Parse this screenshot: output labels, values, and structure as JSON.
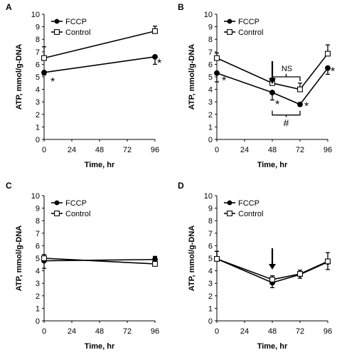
{
  "chart_data": [
    {
      "type": "line",
      "panel_label": "A",
      "xlabel": "Time, hr",
      "ylabel": "ATP, mmol/g-DNA",
      "xlim": [
        0,
        96
      ],
      "ylim": [
        0,
        10
      ],
      "xticks": [
        "0",
        "24",
        "48",
        "72",
        "96"
      ],
      "yticks": [
        "0",
        "1",
        "2",
        "3",
        "4",
        "5",
        "6",
        "7",
        "8",
        "9",
        "10"
      ],
      "legend_position": "top-left",
      "series": [
        {
          "name": "FCCP",
          "marker": "filled-circle",
          "x": [
            0,
            96
          ],
          "values": [
            5.35,
            6.6
          ],
          "err": [
            0.2,
            0.6
          ]
        },
        {
          "name": "Control",
          "marker": "open-square",
          "x": [
            0,
            96
          ],
          "values": [
            6.5,
            8.65
          ],
          "err": [
            0.9,
            0.4
          ]
        }
      ],
      "annotations": [
        {
          "text": "*",
          "x": 0,
          "y": 5.35
        },
        {
          "text": "*",
          "x": 96,
          "y": 6.6
        }
      ]
    },
    {
      "type": "line",
      "panel_label": "B",
      "xlabel": "Time, hr",
      "ylabel": "ATP, mmol/g-DNA",
      "xlim": [
        0,
        96
      ],
      "ylim": [
        0,
        10
      ],
      "xticks": [
        "0",
        "24",
        "48",
        "72",
        "96"
      ],
      "yticks": [
        "0",
        "1",
        "2",
        "3",
        "4",
        "5",
        "6",
        "7",
        "8",
        "9",
        "10"
      ],
      "legend_position": "top-left",
      "series": [
        {
          "name": "FCCP",
          "marker": "filled-circle",
          "x": [
            0,
            48,
            72,
            96
          ],
          "values": [
            5.3,
            3.75,
            2.8,
            5.7
          ],
          "err": [
            0.7,
            0.6,
            0.15,
            0.5
          ]
        },
        {
          "name": "Control",
          "marker": "open-square",
          "x": [
            0,
            48,
            72,
            96
          ],
          "values": [
            6.5,
            4.5,
            4.0,
            6.85
          ],
          "err": [
            0.4,
            0.4,
            0.5,
            0.7
          ]
        }
      ],
      "annotations": [
        {
          "text": "*",
          "x": 0,
          "y": 5.3
        },
        {
          "text": "*",
          "x": 48,
          "y": 3.75
        },
        {
          "text": "*",
          "x": 72,
          "y": 2.8
        },
        {
          "text": "*",
          "x": 96,
          "y": 5.7
        },
        {
          "text": "NS",
          "x": 60,
          "y": 5.4
        },
        {
          "text": "#",
          "x": 60,
          "y": 2.2
        }
      ],
      "arrow_at_x": 48
    },
    {
      "type": "line",
      "panel_label": "C",
      "xlabel": "Time, hr",
      "ylabel": "ATP, mmol/g-DNA",
      "xlim": [
        0,
        96
      ],
      "ylim": [
        0,
        10
      ],
      "xticks": [
        "0",
        "24",
        "48",
        "72",
        "96"
      ],
      "yticks": [
        "0",
        "1",
        "2",
        "3",
        "4",
        "5",
        "6",
        "7",
        "8",
        "9",
        "10"
      ],
      "legend_position": "top-left",
      "series": [
        {
          "name": "FCCP",
          "marker": "filled-circle",
          "x": [
            0,
            96
          ],
          "values": [
            4.8,
            4.9
          ],
          "err": [
            0.6,
            0.2
          ]
        },
        {
          "name": "Control",
          "marker": "open-square",
          "x": [
            0,
            96
          ],
          "values": [
            5.0,
            4.55
          ],
          "err": [
            0.3,
            0.6
          ]
        }
      ],
      "annotations": []
    },
    {
      "type": "line",
      "panel_label": "D",
      "xlabel": "Time, hr",
      "ylabel": "ATP, mmol/g-DNA",
      "xlim": [
        0,
        96
      ],
      "ylim": [
        0,
        10
      ],
      "xticks": [
        "0",
        "24",
        "48",
        "72",
        "96"
      ],
      "yticks": [
        "0",
        "1",
        "2",
        "3",
        "4",
        "5",
        "6",
        "7",
        "8",
        "9",
        "10"
      ],
      "legend_position": "top-left",
      "series": [
        {
          "name": "FCCP",
          "marker": "filled-circle",
          "x": [
            0,
            48,
            72,
            96
          ],
          "values": [
            4.95,
            3.05,
            3.7,
            4.7
          ],
          "err": [
            0.6,
            0.4,
            0.3,
            0.6
          ]
        },
        {
          "name": "Control",
          "marker": "open-square",
          "x": [
            0,
            48,
            72,
            96
          ],
          "values": [
            4.95,
            3.3,
            3.75,
            4.75
          ],
          "err": [
            0.6,
            0.3,
            0.3,
            0.7
          ]
        }
      ],
      "annotations": [],
      "arrow_at_x": 48
    }
  ]
}
